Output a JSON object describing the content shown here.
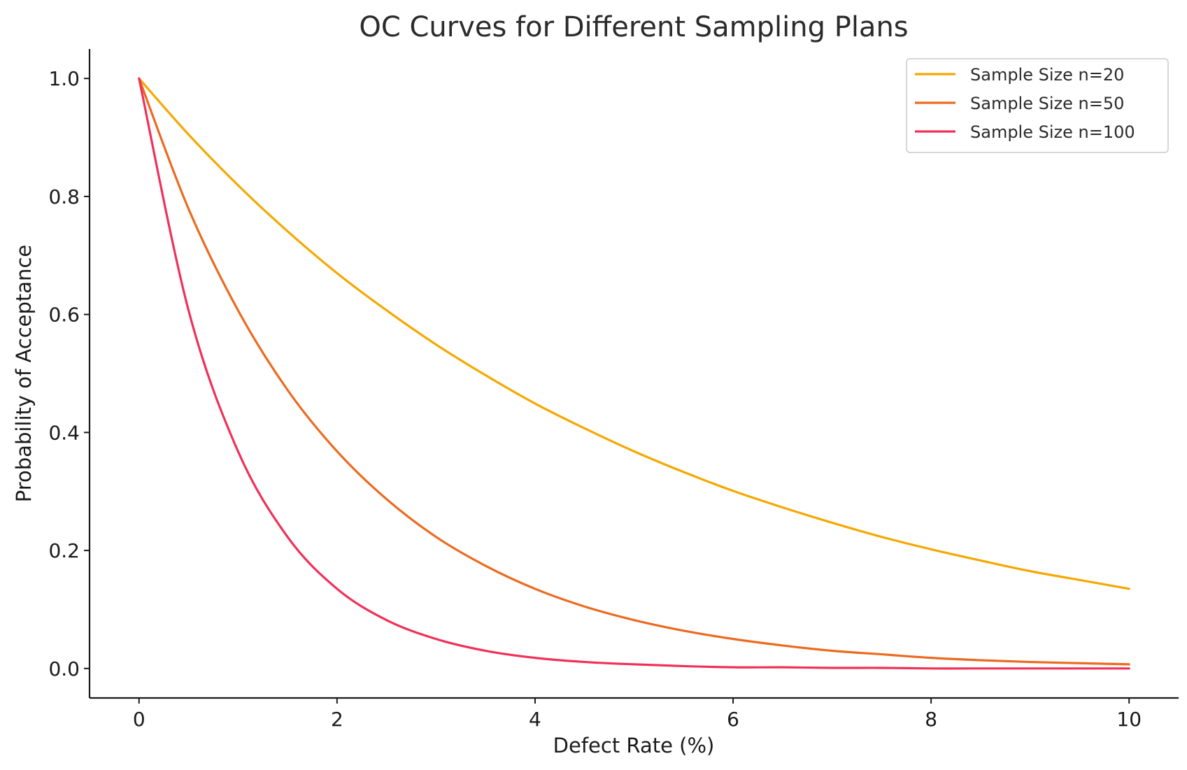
{
  "chart_data": {
    "type": "line",
    "title": "OC Curves for Different Sampling Plans",
    "xlabel": "Defect Rate (%)",
    "ylabel": "Probability of Acceptance",
    "xlim": [
      -0.5,
      10.5
    ],
    "ylim": [
      -0.05,
      1.05
    ],
    "xticks": [
      0,
      2,
      4,
      6,
      8,
      10
    ],
    "xtick_labels": [
      "0",
      "2",
      "4",
      "6",
      "8",
      "10"
    ],
    "yticks": [
      0.0,
      0.2,
      0.4,
      0.6,
      0.8,
      1.0
    ],
    "ytick_labels": [
      "0.0",
      "0.2",
      "0.4",
      "0.6",
      "0.8",
      "1.0"
    ],
    "grid": false,
    "legend_position": "top-right",
    "x": [
      0,
      0.5,
      1,
      1.5,
      2,
      2.5,
      3,
      3.5,
      4,
      4.5,
      5,
      5.5,
      6,
      6.5,
      7,
      7.5,
      8,
      8.5,
      9,
      9.5,
      10
    ],
    "series": [
      {
        "name": "Sample Size n=20",
        "color": "#F5A800",
        "values": [
          1.0,
          0.905,
          0.819,
          0.741,
          0.67,
          0.607,
          0.549,
          0.497,
          0.449,
          0.407,
          0.368,
          0.333,
          0.301,
          0.273,
          0.247,
          0.223,
          0.202,
          0.183,
          0.165,
          0.15,
          0.135
        ]
      },
      {
        "name": "Sample Size n=50",
        "color": "#EC6A1F",
        "values": [
          1.0,
          0.779,
          0.607,
          0.472,
          0.368,
          0.287,
          0.223,
          0.174,
          0.135,
          0.105,
          0.082,
          0.064,
          0.05,
          0.039,
          0.03,
          0.024,
          0.018,
          0.014,
          0.011,
          0.009,
          0.007
        ]
      },
      {
        "name": "Sample Size n=100",
        "color": "#F03058",
        "values": [
          1.0,
          0.607,
          0.368,
          0.223,
          0.135,
          0.082,
          0.05,
          0.03,
          0.018,
          0.011,
          0.007,
          0.004,
          0.002,
          0.002,
          0.001,
          0.001,
          0.0,
          0.0,
          0.0,
          0.0,
          0.0
        ]
      }
    ]
  }
}
